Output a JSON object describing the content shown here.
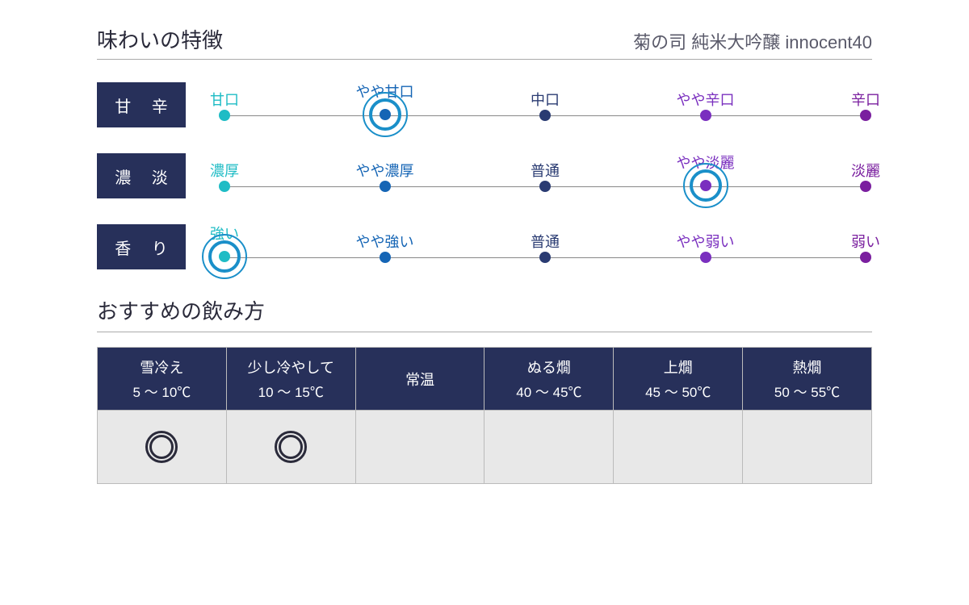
{
  "section1_title": "味わいの特徴",
  "product_name": "菊の司 純米大吟醸 innocent40",
  "section2_title": "おすすめの飲み方",
  "scale_colors": [
    "#1fbcc5",
    "#1565b5",
    "#2a3b72",
    "#7a2fbf",
    "#7a1f9f"
  ],
  "selection_ring_color": "#1a8fc9",
  "scales": [
    {
      "label": "甘 辛",
      "ticks": [
        "甘口",
        "やや甘口",
        "中口",
        "やや辛口",
        "辛口"
      ],
      "selected": 1
    },
    {
      "label": "濃 淡",
      "ticks": [
        "濃厚",
        "やや濃厚",
        "普通",
        "やや淡麗",
        "淡麗"
      ],
      "selected": 3
    },
    {
      "label": "香 り",
      "ticks": [
        "強い",
        "やや強い",
        "普通",
        "やや弱い",
        "弱い"
      ],
      "selected": 0
    }
  ],
  "temp_table": {
    "header_bg": "#27305a",
    "cell_bg": "#e8e8e8",
    "columns": [
      {
        "name": "雪冷え",
        "range": "5 〜 10℃",
        "recommended": true
      },
      {
        "name": "少し冷やして",
        "range": "10 〜 15℃",
        "recommended": true
      },
      {
        "name": "常温",
        "range": "",
        "recommended": false
      },
      {
        "name": "ぬる燗",
        "range": "40 〜 45℃",
        "recommended": false
      },
      {
        "name": "上燗",
        "range": "45 〜 50℃",
        "recommended": false
      },
      {
        "name": "熱燗",
        "range": "50 〜 55℃",
        "recommended": false
      }
    ]
  },
  "tick_positions_pct": [
    0,
    25,
    50,
    75,
    100
  ]
}
